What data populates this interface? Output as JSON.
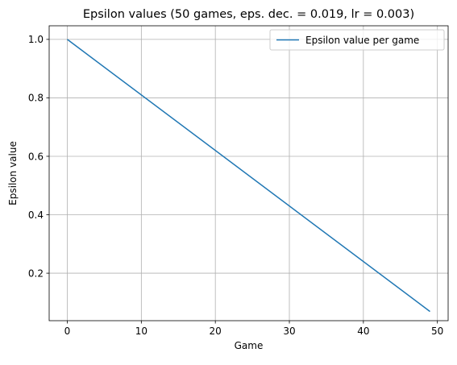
{
  "chart_data": {
    "type": "line",
    "title": "Epsilon values (50 games, eps. dec. = 0.019, lr = 0.003)",
    "xlabel": "Game",
    "ylabel": "Epsilon value",
    "xlim": [
      -2.45,
      51.45
    ],
    "ylim": [
      0.0376,
      1.0465
    ],
    "xticks": [
      0,
      10,
      20,
      30,
      40,
      50
    ],
    "yticks": [
      0.2,
      0.4,
      0.6,
      0.8,
      1.0
    ],
    "xtick_labels": [
      "0",
      "10",
      "20",
      "30",
      "40",
      "50"
    ],
    "ytick_labels": [
      "0.2",
      "0.4",
      "0.6",
      "0.8",
      "1.0"
    ],
    "grid": true,
    "legend_position": "top-right",
    "series": [
      {
        "name": "Epsilon value per game",
        "color": "#1f77b4",
        "x": [
          0,
          49
        ],
        "y": [
          1.0,
          0.069
        ]
      }
    ]
  }
}
